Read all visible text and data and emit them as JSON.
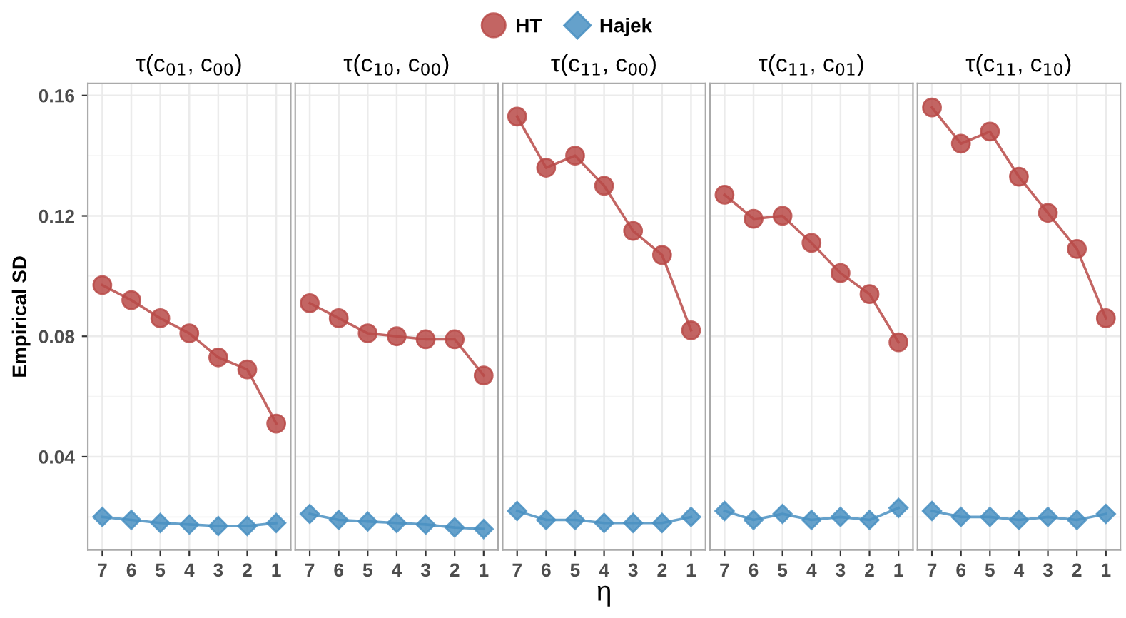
{
  "chart_data": [
    {
      "type": "line",
      "title": "τ(c$_{01}$, c$_{00}$)",
      "ylabel": "Empirical SD",
      "categories": [
        "7",
        "6",
        "5",
        "4",
        "3",
        "2",
        "1"
      ],
      "ylim": [
        0.009,
        0.164
      ],
      "yticks": [
        0.04,
        0.08,
        0.12,
        0.16
      ],
      "grid": true,
      "legend": "top",
      "series": [
        {
          "name": "HT",
          "color": "#b94a48",
          "marker": "circle",
          "values": [
            0.097,
            0.092,
            0.086,
            0.081,
            0.073,
            0.069,
            0.051
          ]
        },
        {
          "name": "Hajek",
          "color": "#4a90c2",
          "marker": "diamond",
          "values": [
            0.02,
            0.019,
            0.018,
            0.0175,
            0.017,
            0.017,
            0.018
          ]
        }
      ]
    },
    {
      "type": "line",
      "title": "τ(c$_{10}$, c$_{00}$)",
      "categories": [
        "7",
        "6",
        "5",
        "4",
        "3",
        "2",
        "1"
      ],
      "ylim": [
        0.009,
        0.164
      ],
      "yticks": [
        0.04,
        0.08,
        0.12,
        0.16
      ],
      "grid": true,
      "tick_labels": "x",
      "series": [
        {
          "color": "#b94a48",
          "marker": "circle",
          "values": [
            0.091,
            0.086,
            0.081,
            0.08,
            0.079,
            0.079,
            0.067
          ]
        },
        {
          "color": "#4a90c2",
          "marker": "diamond",
          "values": [
            0.021,
            0.019,
            0.0185,
            0.018,
            0.0175,
            0.0165,
            0.016
          ]
        }
      ]
    },
    {
      "type": "line",
      "title": "τ(c$_{11}$, c$_{00}$)",
      "xlabel": "η",
      "categories": [
        "7",
        "6",
        "5",
        "4",
        "3",
        "2",
        "1"
      ],
      "ylim": [
        0.009,
        0.164
      ],
      "yticks": [
        0.04,
        0.08,
        0.12,
        0.16
      ],
      "grid": true,
      "tick_labels": "x",
      "series": [
        {
          "color": "#b94a48",
          "marker": "circle",
          "values": [
            0.153,
            0.136,
            0.14,
            0.13,
            0.115,
            0.107,
            0.082
          ]
        },
        {
          "color": "#4a90c2",
          "marker": "diamond",
          "values": [
            0.022,
            0.019,
            0.019,
            0.018,
            0.018,
            0.018,
            0.02
          ]
        }
      ]
    },
    {
      "type": "line",
      "title": "τ(c$_{11}$, c$_{01}$)",
      "categories": [
        "7",
        "6",
        "5",
        "4",
        "3",
        "2",
        "1"
      ],
      "ylim": [
        0.009,
        0.164
      ],
      "yticks": [
        0.04,
        0.08,
        0.12,
        0.16
      ],
      "grid": true,
      "tick_labels": "x",
      "series": [
        {
          "color": "#b94a48",
          "marker": "circle",
          "values": [
            0.127,
            0.119,
            0.12,
            0.111,
            0.101,
            0.094,
            0.078
          ]
        },
        {
          "color": "#4a90c2",
          "marker": "diamond",
          "values": [
            0.022,
            0.019,
            0.021,
            0.019,
            0.02,
            0.019,
            0.023
          ]
        }
      ]
    },
    {
      "type": "line",
      "title": "τ(c$_{11}$, c$_{10}$)",
      "categories": [
        "7",
        "6",
        "5",
        "4",
        "3",
        "2",
        "1"
      ],
      "ylim": [
        0.009,
        0.164
      ],
      "yticks": [
        0.04,
        0.08,
        0.12,
        0.16
      ],
      "grid": true,
      "tick_labels": "x",
      "series": [
        {
          "color": "#b94a48",
          "marker": "circle",
          "values": [
            0.156,
            0.144,
            0.148,
            0.133,
            0.121,
            0.109,
            0.086
          ]
        },
        {
          "color": "#4a90c2",
          "marker": "diamond",
          "values": [
            0.022,
            0.02,
            0.02,
            0.019,
            0.02,
            0.019,
            0.021
          ]
        }
      ]
    }
  ]
}
